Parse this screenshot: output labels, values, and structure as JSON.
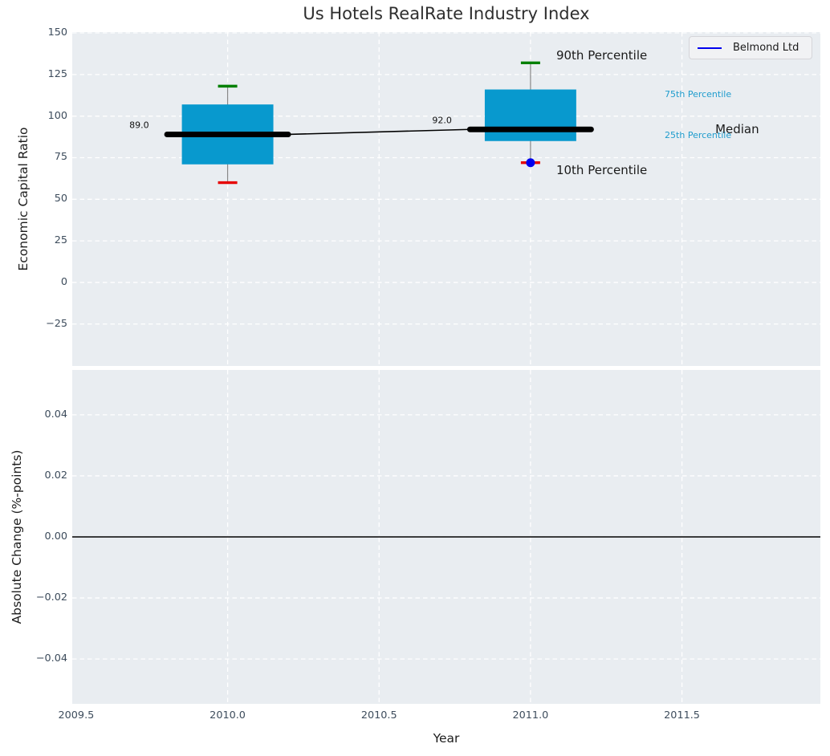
{
  "colors": {
    "panel_bg": "#e9edf1",
    "grid": "#ffffff",
    "box_fill": "#0899ce",
    "whisker": "#888888",
    "p90_cap": "#008000",
    "p10_cap": "#e60000",
    "median_line": "#000000",
    "company_marker": "#0000ee",
    "annotation_small": "#1f9ccd",
    "annotation_large": "#1a1a1a",
    "tick_label": "#3d4c5c",
    "zero_line": "#000000"
  },
  "chart_data": [
    {
      "type": "boxplot-timeseries",
      "title": "Us Hotels RealRate Industry Index",
      "ylabel": "Economic Capital Ratio",
      "xlabel": "",
      "xlim": [
        2009.487,
        2011.957
      ],
      "ylim": [
        -50.2,
        150.5
      ],
      "grid": true,
      "yticks": [
        {
          "v": 150,
          "label": "150"
        },
        {
          "v": 125,
          "label": "125"
        },
        {
          "v": 100,
          "label": "100"
        },
        {
          "v": 75,
          "label": "75"
        },
        {
          "v": 50,
          "label": "50"
        },
        {
          "v": 25,
          "label": "25"
        },
        {
          "v": 0,
          "label": "0"
        },
        {
          "v": -25,
          "label": "−25"
        }
      ],
      "xticks": [
        {
          "v": 2009.5,
          "label": "2009.5",
          "grid": false
        },
        {
          "v": 2010.0,
          "label": "2010.0",
          "grid": true
        },
        {
          "v": 2010.5,
          "label": "2010.5",
          "grid": true
        },
        {
          "v": 2011.0,
          "label": "2011.0",
          "grid": true
        },
        {
          "v": 2011.5,
          "label": "2011.5",
          "grid": true
        }
      ],
      "legend": {
        "label": "Belmond Ltd",
        "color": "#0000ee",
        "position": "upper right"
      },
      "boxes": [
        {
          "x": 2010,
          "p10": 60,
          "p25": 71,
          "median": 89,
          "p75": 107,
          "p90": 118,
          "median_label": "89.0"
        },
        {
          "x": 2011,
          "p10": 72,
          "p25": 85,
          "median": 92,
          "p75": 116,
          "p90": 132,
          "median_label": "92.0"
        }
      ],
      "company_points": [
        {
          "x": 2011,
          "y": 72
        }
      ],
      "annotations": [
        {
          "text": "90th Percentile",
          "x": 2011.085,
          "y": 136.5,
          "size": "large",
          "color": "#1a1a1a"
        },
        {
          "text": "75th Percentile",
          "x": 2011.443,
          "y": 113.4,
          "size": "small",
          "color": "#1f9ccd"
        },
        {
          "text": "Median",
          "x": 2011.61,
          "y": 92.1,
          "size": "large",
          "color": "#1a1a1a"
        },
        {
          "text": "25th Percentile",
          "x": 2011.443,
          "y": 88.7,
          "size": "small",
          "color": "#1f9ccd"
        },
        {
          "text": "10th Percentile",
          "x": 2011.085,
          "y": 67.5,
          "size": "large",
          "color": "#1a1a1a"
        }
      ]
    },
    {
      "type": "line",
      "title": "",
      "ylabel": "Absolute Change (%-points)",
      "xlabel": "Year",
      "xlim": [
        2009.487,
        2011.957
      ],
      "ylim": [
        -0.0547,
        0.0547
      ],
      "grid": true,
      "zero_line": true,
      "series": [],
      "yticks": [
        {
          "v": 0.04,
          "label": "0.04"
        },
        {
          "v": 0.02,
          "label": "0.02"
        },
        {
          "v": 0.0,
          "label": "0.00"
        },
        {
          "v": -0.02,
          "label": "−0.02"
        },
        {
          "v": -0.04,
          "label": "−0.04"
        }
      ],
      "xticks": [
        {
          "v": 2009.5,
          "label": "2009.5",
          "grid": false
        },
        {
          "v": 2010.0,
          "label": "2010.0",
          "grid": true
        },
        {
          "v": 2010.5,
          "label": "2010.5",
          "grid": true
        },
        {
          "v": 2011.0,
          "label": "2011.0",
          "grid": true
        },
        {
          "v": 2011.5,
          "label": "2011.5",
          "grid": true
        }
      ]
    }
  ]
}
